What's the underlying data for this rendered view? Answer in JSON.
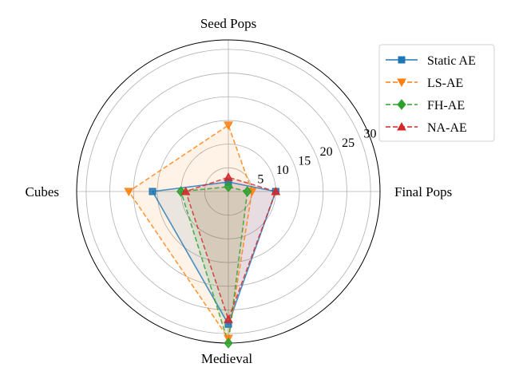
{
  "chart_data": {
    "type": "radar",
    "categories": [
      "Final Pops",
      "Seed Pops",
      "Cubes",
      "Medieval"
    ],
    "rmax": 32,
    "rticks": [
      5,
      10,
      15,
      20,
      25,
      30
    ],
    "grid": true,
    "legend_position": "top-right",
    "series": [
      {
        "name": "Static AE",
        "values": [
          10,
          2,
          16,
          28
        ],
        "color": "#1f77b4",
        "marker": "square",
        "dash": "solid"
      },
      {
        "name": "LS-AE",
        "values": [
          5,
          14,
          21,
          31
        ],
        "color": "#ff7f0e",
        "marker": "triangle-down",
        "dash": "dashed"
      },
      {
        "name": "FH-AE",
        "values": [
          4,
          1,
          10,
          32
        ],
        "color": "#2ca02c",
        "marker": "diamond",
        "dash": "dashed"
      },
      {
        "name": "NA-AE",
        "values": [
          10,
          3,
          9,
          27
        ],
        "color": "#d62728",
        "marker": "triangle-up",
        "dash": "dashed"
      }
    ]
  }
}
